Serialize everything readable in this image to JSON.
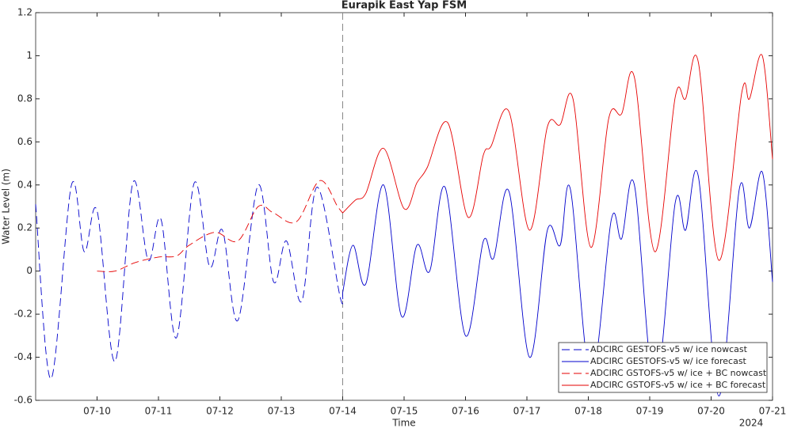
{
  "chart_data": {
    "type": "line",
    "title": "Eurapik East Yap FSM",
    "x_label": "Time",
    "y_label": "Water Level (m)",
    "year_label": "2024",
    "xlim": [
      "2024-07-09T00:00",
      "2024-07-21T00:00"
    ],
    "xticks": [
      {
        "value": "2024-07-10T00:00",
        "label": "07-10"
      },
      {
        "value": "2024-07-11T00:00",
        "label": "07-11"
      },
      {
        "value": "2024-07-12T00:00",
        "label": "07-12"
      },
      {
        "value": "2024-07-13T00:00",
        "label": "07-13"
      },
      {
        "value": "2024-07-14T00:00",
        "label": "07-14"
      },
      {
        "value": "2024-07-15T00:00",
        "label": "07-15"
      },
      {
        "value": "2024-07-16T00:00",
        "label": "07-16"
      },
      {
        "value": "2024-07-17T00:00",
        "label": "07-17"
      },
      {
        "value": "2024-07-18T00:00",
        "label": "07-18"
      },
      {
        "value": "2024-07-19T00:00",
        "label": "07-19"
      },
      {
        "value": "2024-07-20T00:00",
        "label": "07-20"
      },
      {
        "value": "2024-07-21T00:00",
        "label": "07-21"
      }
    ],
    "ylim": [
      -0.6,
      1.2
    ],
    "yticks": [
      -0.6,
      -0.4,
      -0.2,
      0,
      0.2,
      0.4,
      0.6,
      0.8,
      1,
      1.2
    ],
    "grid": false,
    "forecast_start": "2024-07-14T00:00",
    "legend_position": "lower right",
    "series": [
      {
        "name": "ADCIRC GESTOFS-v5 w/ ice nowcast",
        "color": "#0000cc",
        "dash": true,
        "x": [
          "2024-07-09T00:00",
          "2024-07-09T06:00",
          "2024-07-09T14:00",
          "2024-07-09T19:00",
          "2024-07-10T00:00",
          "2024-07-10T07:00",
          "2024-07-10T14:00",
          "2024-07-10T20:00",
          "2024-07-11T01:00",
          "2024-07-11T07:00",
          "2024-07-11T14:00",
          "2024-07-11T20:00",
          "2024-07-12T01:00",
          "2024-07-12T07:00",
          "2024-07-12T15:00",
          "2024-07-12T21:00",
          "2024-07-13T02:00",
          "2024-07-13T08:00",
          "2024-07-13T14:00",
          "2024-07-13T23:00",
          "2024-07-14T00:00"
        ],
        "values": [
          0.31,
          -0.5,
          0.4,
          0.09,
          0.28,
          -0.42,
          0.41,
          0.05,
          0.24,
          -0.31,
          0.41,
          0.02,
          0.19,
          -0.23,
          0.4,
          -0.05,
          0.14,
          -0.14,
          0.39,
          -0.12,
          -0.1
        ]
      },
      {
        "name": "ADCIRC GESTOFS-v5 w/ ice forecast",
        "color": "#0000cc",
        "dash": false,
        "x": [
          "2024-07-14T00:00",
          "2024-07-14T04:00",
          "2024-07-14T09:00",
          "2024-07-14T16:00",
          "2024-07-14T23:00",
          "2024-07-15T05:00",
          "2024-07-15T10:00",
          "2024-07-15T16:00",
          "2024-07-16T00:00",
          "2024-07-16T07:00",
          "2024-07-16T11:00",
          "2024-07-16T17:00",
          "2024-07-17T01:00",
          "2024-07-17T08:00",
          "2024-07-17T13:00",
          "2024-07-17T17:00",
          "2024-07-18T01:00",
          "2024-07-18T09:00",
          "2024-07-18T13:00",
          "2024-07-18T18:00",
          "2024-07-19T02:00",
          "2024-07-19T10:00",
          "2024-07-19T14:00",
          "2024-07-19T19:00",
          "2024-07-20T03:00",
          "2024-07-20T11:00",
          "2024-07-20T15:00",
          "2024-07-20T20:00",
          "2024-07-21T00:00"
        ],
        "values": [
          -0.1,
          0.12,
          -0.06,
          0.4,
          -0.21,
          0.12,
          0,
          0.39,
          -0.3,
          0.14,
          0.06,
          0.37,
          -0.4,
          0.19,
          0.12,
          0.38,
          -0.5,
          0.24,
          0.15,
          0.4,
          -0.55,
          0.32,
          0.19,
          0.44,
          -0.58,
          0.38,
          0.2,
          0.46,
          -0.05
        ]
      },
      {
        "name": "ADCIRC GSTOFS-v5 w/ ice + BC nowcast",
        "color": "#e60000",
        "dash": true,
        "x": [
          "2024-07-10T00:00",
          "2024-07-10T07:00",
          "2024-07-10T15:00",
          "2024-07-11T00:00",
          "2024-07-11T07:00",
          "2024-07-11T12:00",
          "2024-07-11T22:00",
          "2024-07-12T07:00",
          "2024-07-12T15:00",
          "2024-07-12T21:00",
          "2024-07-13T06:00",
          "2024-07-13T15:00",
          "2024-07-13T22:00",
          "2024-07-14T00:00"
        ],
        "values": [
          0,
          0,
          0.04,
          0.065,
          0.07,
          0.12,
          0.18,
          0.14,
          0.3,
          0.27,
          0.23,
          0.42,
          0.3,
          0.27
        ]
      },
      {
        "name": "ADCIRC GSTOFS-v5 w/ ice + BC forecast",
        "color": "#e60000",
        "dash": false,
        "x": [
          "2024-07-14T00:00",
          "2024-07-14T05:00",
          "2024-07-14T09:00",
          "2024-07-14T16:00",
          "2024-07-15T00:00",
          "2024-07-15T05:00",
          "2024-07-15T09:00",
          "2024-07-15T17:00",
          "2024-07-16T01:00",
          "2024-07-16T07:00",
          "2024-07-16T10:00",
          "2024-07-16T17:00",
          "2024-07-17T01:00",
          "2024-07-17T08:00",
          "2024-07-17T13:00",
          "2024-07-17T18:00",
          "2024-07-18T01:00",
          "2024-07-18T08:00",
          "2024-07-18T13:00",
          "2024-07-18T18:00",
          "2024-07-19T02:00",
          "2024-07-19T10:00",
          "2024-07-19T14:00",
          "2024-07-19T19:00",
          "2024-07-20T03:00",
          "2024-07-20T12:00",
          "2024-07-20T15:00",
          "2024-07-20T20:00",
          "2024-07-21T00:00"
        ],
        "values": [
          0.27,
          0.33,
          0.36,
          0.57,
          0.29,
          0.41,
          0.48,
          0.69,
          0.25,
          0.54,
          0.58,
          0.74,
          0.19,
          0.67,
          0.68,
          0.8,
          0.11,
          0.71,
          0.73,
          0.9,
          0.09,
          0.81,
          0.8,
          0.97,
          0.05,
          0.83,
          0.8,
          1,
          0.52
        ]
      }
    ]
  }
}
